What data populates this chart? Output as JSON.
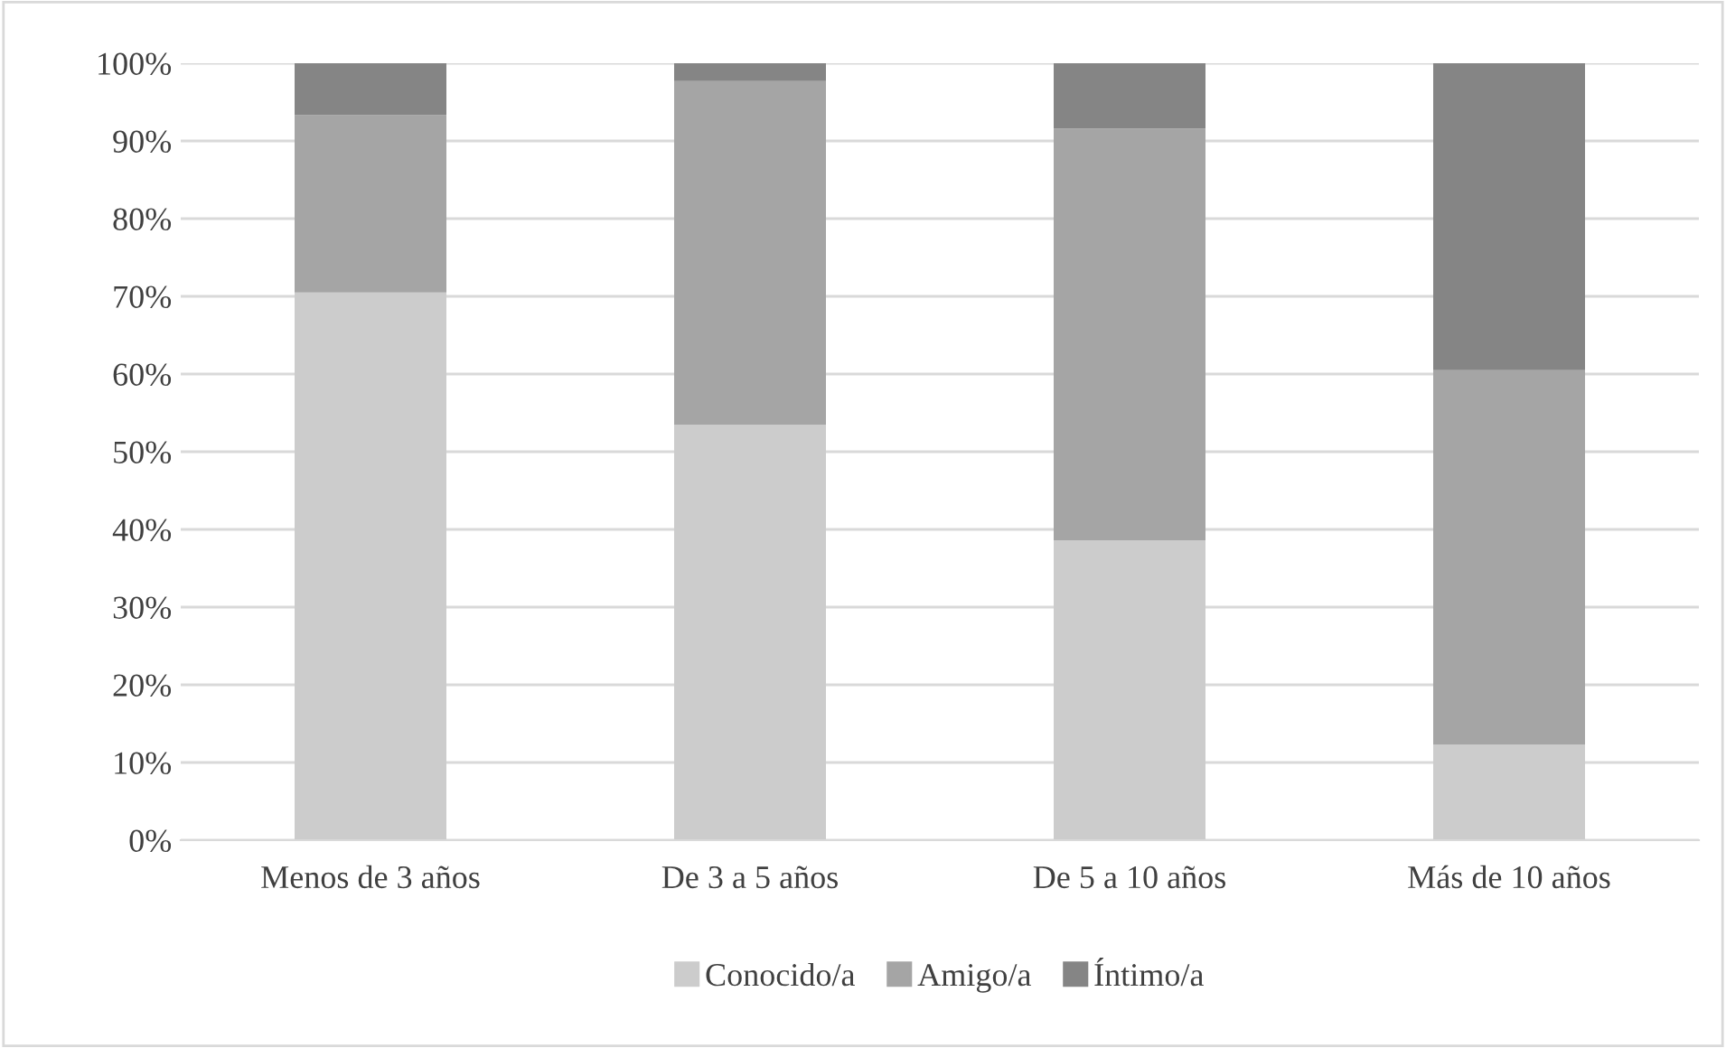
{
  "chart_data": {
    "type": "bar",
    "stacked": true,
    "categories": [
      "Menos de 3 años",
      "De 3 a 5 años",
      "De 5 a 10 años",
      "Más de 10 años"
    ],
    "series": [
      {
        "name": "Conocido/a",
        "color": "#cccccc",
        "values": [
          70.5,
          53.5,
          38.6,
          12.3
        ]
      },
      {
        "name": "Amigo/a",
        "color": "#a5a5a5",
        "values": [
          22.8,
          44.2,
          53.0,
          48.2
        ]
      },
      {
        "name": "Íntimo/a",
        "color": "#858585",
        "values": [
          6.7,
          2.3,
          8.4,
          39.5
        ]
      }
    ],
    "ylim": [
      0,
      100
    ],
    "yticks": [
      {
        "value": 0,
        "label": "0%"
      },
      {
        "value": 10,
        "label": "10%"
      },
      {
        "value": 20,
        "label": "20%"
      },
      {
        "value": 30,
        "label": "30%"
      },
      {
        "value": 40,
        "label": "40%"
      },
      {
        "value": 50,
        "label": "50%"
      },
      {
        "value": 60,
        "label": "60%"
      },
      {
        "value": 70,
        "label": "70%"
      },
      {
        "value": 80,
        "label": "80%"
      },
      {
        "value": 90,
        "label": "90%"
      },
      {
        "value": 100,
        "label": "100%"
      }
    ],
    "grid": "y",
    "legend": "bottom"
  }
}
